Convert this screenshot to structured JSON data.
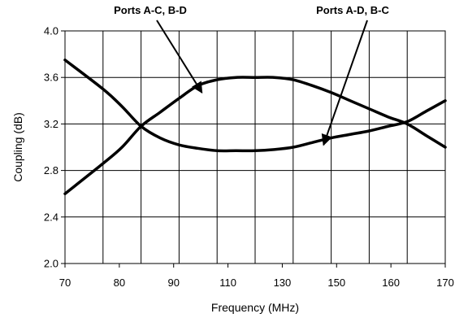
{
  "chart_data": {
    "type": "line",
    "title": "",
    "xlabel": "Frequency (MHz)",
    "ylabel": "Coupling (dB)",
    "xlim": [
      70,
      170
    ],
    "ylim": [
      2.0,
      4.0
    ],
    "x_ticks": [
      70,
      80,
      90,
      110,
      130,
      150,
      160,
      170
    ],
    "y_ticks": [
      2.0,
      2.4,
      2.8,
      3.2,
      3.6,
      4.0
    ],
    "y_tick_labels": [
      "2.0",
      "2.4",
      "2.8",
      "3.2",
      "3.6",
      "4.0"
    ],
    "grid": true,
    "line_color": "#000000",
    "series": [
      {
        "name": "Ports A-C, B-D",
        "points": [
          [
            70,
            2.6
          ],
          [
            80,
            2.86
          ],
          [
            85,
            3.0
          ],
          [
            90,
            3.18
          ],
          [
            95,
            3.3
          ],
          [
            100,
            3.42
          ],
          [
            105,
            3.53
          ],
          [
            110,
            3.58
          ],
          [
            115,
            3.6
          ],
          [
            120,
            3.6
          ],
          [
            125,
            3.6
          ],
          [
            130,
            3.58
          ],
          [
            135,
            3.53
          ],
          [
            140,
            3.47
          ],
          [
            145,
            3.4
          ],
          [
            150,
            3.33
          ],
          [
            155,
            3.26
          ],
          [
            160,
            3.2
          ],
          [
            165,
            3.1
          ],
          [
            170,
            3.0
          ]
        ]
      },
      {
        "name": "Ports A-D, B-C",
        "points": [
          [
            70,
            3.75
          ],
          [
            80,
            3.5
          ],
          [
            85,
            3.35
          ],
          [
            90,
            3.18
          ],
          [
            95,
            3.08
          ],
          [
            100,
            3.02
          ],
          [
            105,
            2.99
          ],
          [
            110,
            2.97
          ],
          [
            115,
            2.97
          ],
          [
            120,
            2.97
          ],
          [
            125,
            2.98
          ],
          [
            130,
            3.0
          ],
          [
            135,
            3.04
          ],
          [
            140,
            3.08
          ],
          [
            145,
            3.11
          ],
          [
            150,
            3.14
          ],
          [
            155,
            3.18
          ],
          [
            160,
            3.22
          ],
          [
            165,
            3.31
          ],
          [
            170,
            3.4
          ]
        ]
      }
    ],
    "annotations": [
      {
        "text": "Ports A-C, B-D",
        "target": [
          106,
          3.47
        ],
        "anchor": "top-center-left"
      },
      {
        "text": "Ports A-D, B-C",
        "target": [
          138,
          3.02
        ],
        "anchor": "top-center-right"
      }
    ]
  }
}
